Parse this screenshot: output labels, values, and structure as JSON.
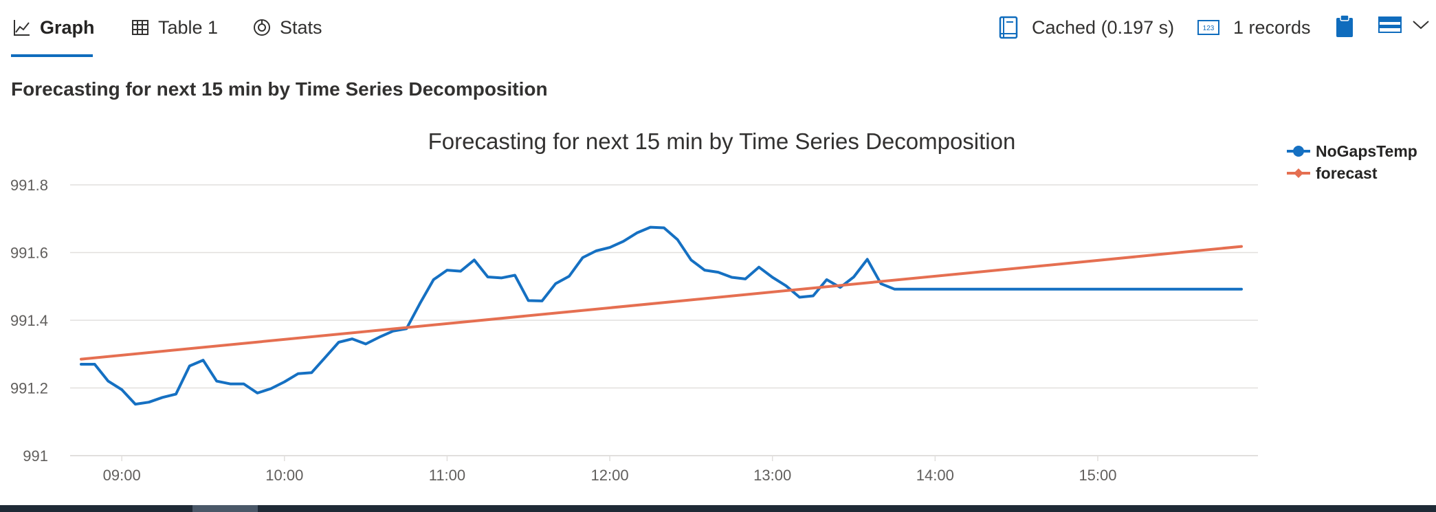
{
  "tabs": [
    {
      "label": "Graph",
      "icon": "line-chart-icon",
      "active": true
    },
    {
      "label": "Table 1",
      "icon": "table-icon",
      "active": false
    },
    {
      "label": "Stats",
      "icon": "stats-icon",
      "active": false
    }
  ],
  "status": {
    "cached_text": "Cached (0.197 s)",
    "records_text": "1 records",
    "records_icon_text": "123"
  },
  "page_title": "Forecasting for next 15 min by Time Series Decomposition",
  "colors": {
    "accent": "#0f6cbd",
    "series_nogaps": "#1570c2",
    "series_forecast": "#e56f51",
    "grid": "#e1dfdd"
  },
  "chart_data": {
    "type": "line",
    "title": "Forecasting for next 15 min by Time Series Decomposition",
    "xlabel": "",
    "ylabel": "",
    "xlim": [
      "08:45",
      "15:53"
    ],
    "ylim": [
      991.0,
      991.8
    ],
    "yticks": [
      991.8,
      991.6,
      991.4,
      991.2,
      991
    ],
    "ytick_labels": [
      "991.8",
      "991.6",
      "991.4",
      "991.2",
      "991"
    ],
    "xticks": [
      "09:00",
      "10:00",
      "11:00",
      "12:00",
      "13:00",
      "14:00",
      "15:00"
    ],
    "legend": {
      "position": "top-right"
    },
    "series": [
      {
        "name": "NoGapsTemp",
        "marker": "circle",
        "x": [
          "08:45",
          "08:50",
          "08:55",
          "09:00",
          "09:05",
          "09:10",
          "09:15",
          "09:20",
          "09:25",
          "09:30",
          "09:35",
          "09:40",
          "09:45",
          "09:50",
          "09:55",
          "10:00",
          "10:05",
          "10:10",
          "10:15",
          "10:20",
          "10:25",
          "10:30",
          "10:35",
          "10:40",
          "10:45",
          "10:50",
          "10:55",
          "11:00",
          "11:05",
          "11:10",
          "11:15",
          "11:20",
          "11:25",
          "11:30",
          "11:35",
          "11:40",
          "11:45",
          "11:50",
          "11:55",
          "12:00",
          "12:05",
          "12:10",
          "12:15",
          "12:20",
          "12:25",
          "12:30",
          "12:35",
          "12:40",
          "12:45",
          "12:50",
          "12:55",
          "13:00",
          "13:05",
          "13:10",
          "13:15",
          "13:20",
          "13:25",
          "13:30",
          "13:35",
          "13:40",
          "13:45",
          "13:50",
          "13:55",
          "14:00",
          "14:05",
          "14:10",
          "14:15",
          "14:20",
          "14:25",
          "14:30",
          "14:35",
          "14:40",
          "14:45",
          "14:50",
          "14:55",
          "15:00",
          "15:05",
          "15:10",
          "15:15",
          "15:20",
          "15:25",
          "15:30",
          "15:35",
          "15:40",
          "15:45",
          "15:50",
          "15:53"
        ],
        "values": [
          991.27,
          991.27,
          991.22,
          991.195,
          991.152,
          991.158,
          991.172,
          991.182,
          991.265,
          991.282,
          991.22,
          991.212,
          991.212,
          991.185,
          991.198,
          991.218,
          991.242,
          991.245,
          991.29,
          991.335,
          991.345,
          991.33,
          991.35,
          991.368,
          991.375,
          991.45,
          991.52,
          991.548,
          991.545,
          991.578,
          991.528,
          991.525,
          991.533,
          991.458,
          991.457,
          991.508,
          991.53,
          991.585,
          991.605,
          991.615,
          991.633,
          991.658,
          991.675,
          991.673,
          991.638,
          991.578,
          991.548,
          991.542,
          991.527,
          991.522,
          991.557,
          991.527,
          991.502,
          991.468,
          991.472,
          991.52,
          991.497,
          991.528,
          991.58,
          991.508,
          991.492,
          991.492,
          991.492,
          991.492,
          991.492,
          991.492,
          991.492,
          991.492,
          991.492,
          991.492,
          991.492,
          991.492,
          991.492,
          991.492,
          991.492,
          991.492,
          991.492,
          991.492,
          991.492,
          991.492,
          991.492,
          991.492,
          991.492,
          991.492,
          991.492,
          991.492,
          991.492
        ]
      },
      {
        "name": "forecast",
        "marker": "diamond",
        "x": [
          "08:45",
          "15:53"
        ],
        "values": [
          991.285,
          991.618
        ]
      }
    ]
  }
}
